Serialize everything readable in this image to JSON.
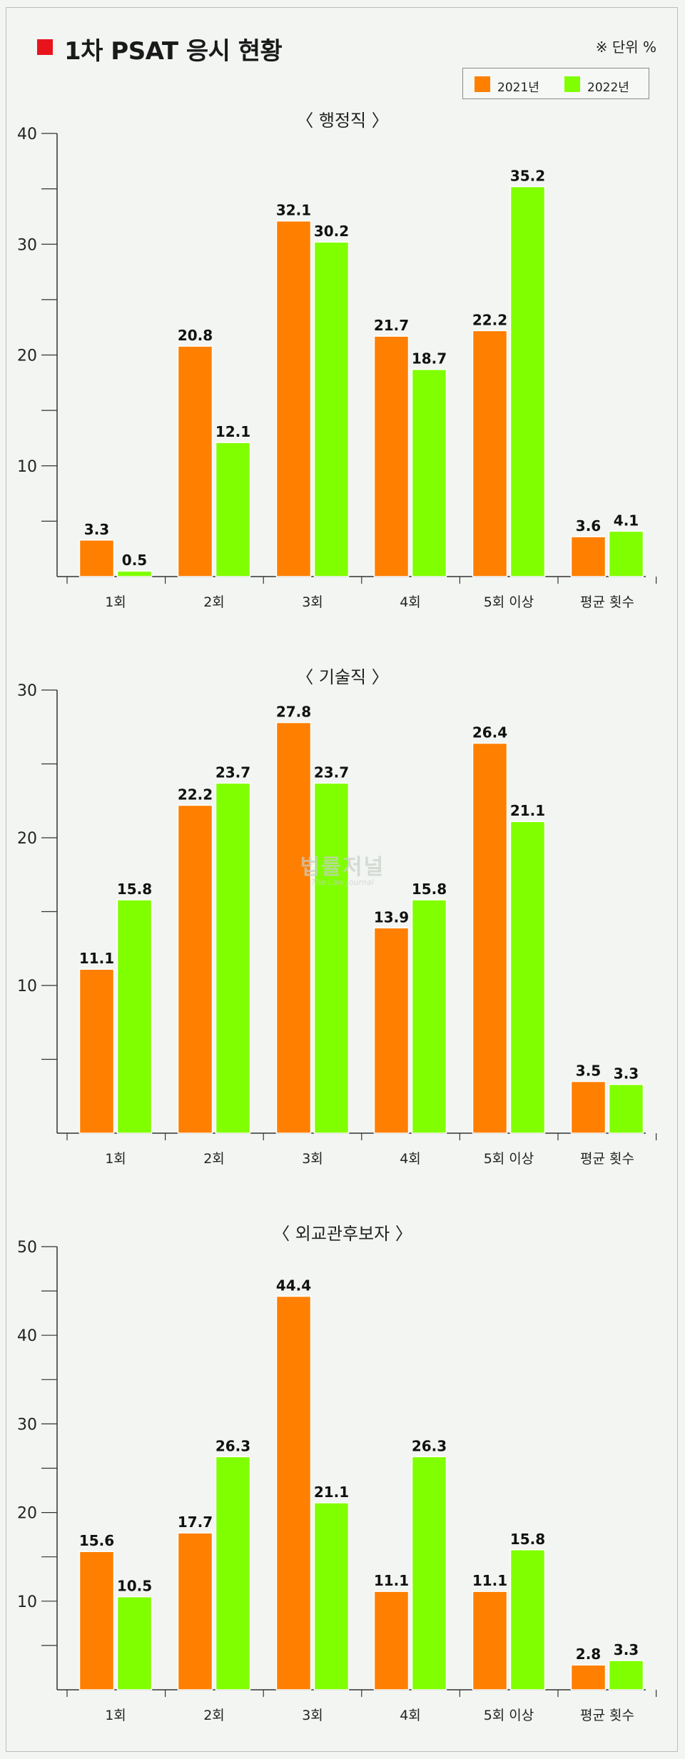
{
  "header": {
    "title": "1차 PSAT 응시 현황",
    "unit_note": "※ 단위 %"
  },
  "legend": [
    {
      "label": "2021년",
      "color": "#ff7f00"
    },
    {
      "label": "2022년",
      "color": "#80ff00"
    }
  ],
  "watermark": {
    "main": "법률저널",
    "sub": "The Law Journal"
  },
  "colors": {
    "series_2021": "#ff7f00",
    "series_2022": "#80ff00",
    "axis": "#333333"
  },
  "chart_data": [
    {
      "type": "bar",
      "title": "〈 행정직 〉",
      "categories": [
        "1회",
        "2회",
        "3회",
        "4회",
        "5회 이상",
        "평균 횟수"
      ],
      "series": [
        {
          "name": "2021년",
          "values": [
            3.3,
            20.8,
            32.1,
            21.7,
            22.2,
            3.6
          ]
        },
        {
          "name": "2022년",
          "values": [
            0.5,
            12.1,
            30.2,
            18.7,
            35.2,
            4.1
          ]
        }
      ],
      "ylim": [
        0,
        40
      ],
      "yticks": [
        10,
        20,
        30,
        40
      ],
      "value_labels": [
        [
          "3.3",
          "20.8",
          "32.1",
          "21.7",
          "22.2",
          "3.6"
        ],
        [
          "0.5",
          "12.1",
          "30.2",
          "18.7",
          "35.2",
          "4.1"
        ]
      ]
    },
    {
      "type": "bar",
      "title": "〈 기술직 〉",
      "categories": [
        "1회",
        "2회",
        "3회",
        "4회",
        "5회 이상",
        "평균 횟수"
      ],
      "series": [
        {
          "name": "2021년",
          "values": [
            11.1,
            22.2,
            27.8,
            13.9,
            26.4,
            3.5
          ]
        },
        {
          "name": "2022년",
          "values": [
            15.8,
            23.7,
            23.7,
            15.8,
            21.1,
            3.3
          ]
        }
      ],
      "ylim": [
        0,
        30
      ],
      "yticks": [
        10,
        20,
        30
      ],
      "value_labels": [
        [
          "11.1",
          "22.2",
          "27.8",
          "13.9",
          "26.4",
          "3.5"
        ],
        [
          "15.8",
          "23.7",
          "23.7",
          "15.8",
          "21.1",
          "3.3"
        ]
      ]
    },
    {
      "type": "bar",
      "title": "〈 외교관후보자 〉",
      "categories": [
        "1회",
        "2회",
        "3회",
        "4회",
        "5회 이상",
        "평균 횟수"
      ],
      "series": [
        {
          "name": "2021년",
          "values": [
            15.6,
            17.7,
            44.4,
            11.1,
            11.1,
            2.8
          ]
        },
        {
          "name": "2022년",
          "values": [
            10.5,
            26.3,
            21.1,
            26.3,
            15.8,
            3.3
          ]
        }
      ],
      "ylim": [
        0,
        50
      ],
      "yticks": [
        10,
        20,
        30,
        40,
        50
      ],
      "value_labels": [
        [
          "15.6",
          "17.7",
          "44.4",
          "11.1",
          "11.1",
          "2.8"
        ],
        [
          "10.5",
          "26.3",
          "21.1",
          "26.3",
          "15.8",
          "3.3"
        ]
      ]
    }
  ]
}
